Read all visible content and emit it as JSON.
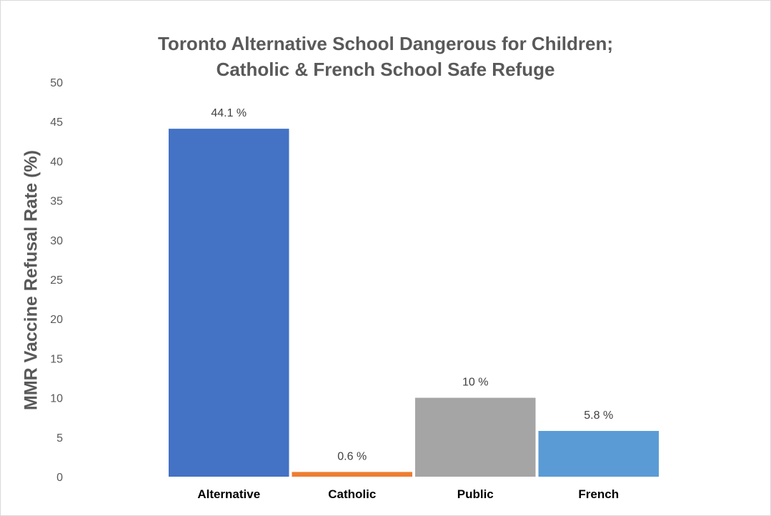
{
  "chart_data": {
    "type": "bar",
    "title_lines": [
      "Toronto Alternative School Dangerous for Children;",
      "Catholic & French School Safe Refuge"
    ],
    "xlabel": "",
    "ylabel": "MMR Vaccine Refusal Rate (%)",
    "ylim": [
      0,
      50
    ],
    "yticks": [
      "0",
      "5",
      "10",
      "15",
      "20",
      "25",
      "30",
      "35",
      "40",
      "45",
      "50"
    ],
    "grid": false,
    "legend": "none",
    "categories": [
      "Alternative",
      "Catholic",
      "Public",
      "French"
    ],
    "values": [
      44.1,
      0.6,
      10,
      5.8
    ],
    "data_labels": [
      "44.1 %",
      "0.6 %",
      "10 %",
      "5.8 %"
    ],
    "colors": [
      "#4472c4",
      "#ed7d31",
      "#a5a5a5",
      "#5b9bd5"
    ]
  }
}
